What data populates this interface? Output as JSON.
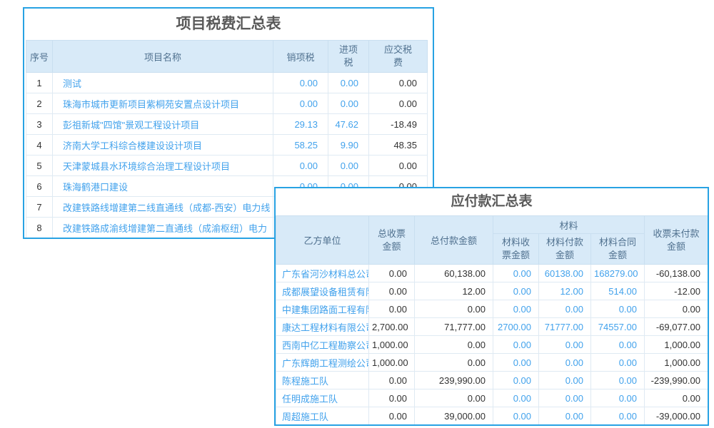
{
  "colors": {
    "card_border": "#28a2e3",
    "header_bg": "#d8eaf8",
    "header_text": "#50718f",
    "link_blue": "#42a2ec",
    "text_dark": "#333333",
    "title_text": "#5a5a5a",
    "cell_border": "#dfeaf3"
  },
  "tax_table": {
    "title": "项目税费汇总表",
    "columns": {
      "no": "序号",
      "project_name": "项目名称",
      "output_tax": "销项税",
      "input_tax": "进项\n税",
      "tax_payable": "应交税\n费"
    },
    "rows": [
      {
        "no": "1",
        "name": "测试",
        "output_tax": "0.00",
        "input_tax": "0.00",
        "tax_payable": "0.00"
      },
      {
        "no": "2",
        "name": "珠海市城市更新项目紫桐苑安置点设计项目",
        "output_tax": "0.00",
        "input_tax": "0.00",
        "tax_payable": "0.00"
      },
      {
        "no": "3",
        "name": "彭祖新城\"四馆\"景观工程设计项目",
        "output_tax": "29.13",
        "input_tax": "47.62",
        "tax_payable": "-18.49"
      },
      {
        "no": "4",
        "name": "济南大学工科综合楼建设设计项目",
        "output_tax": "58.25",
        "input_tax": "9.90",
        "tax_payable": "48.35"
      },
      {
        "no": "5",
        "name": "天津蒙城县水环境综合治理工程设计项目",
        "output_tax": "0.00",
        "input_tax": "0.00",
        "tax_payable": "0.00"
      },
      {
        "no": "6",
        "name": "珠海鹤港口建设",
        "output_tax": "0.00",
        "input_tax": "0.00",
        "tax_payable": "0.00"
      },
      {
        "no": "7",
        "name": "改建铁路线增建第二线直通线（成都-西安）电力线",
        "output_tax": "",
        "input_tax": "",
        "tax_payable": ""
      },
      {
        "no": "8",
        "name": "改建铁路成渝线增建第二直通线（成渝枢纽）电力",
        "output_tax": "",
        "input_tax": "",
        "tax_payable": ""
      }
    ]
  },
  "payable_table": {
    "title": "应付款汇总表",
    "columns": {
      "party": "乙方单位",
      "total_invoice": "总收票\n金额",
      "total_payment": "总付款金额",
      "material_group": "材料",
      "material_invoice": "材料收\n票金额",
      "material_payment": "材料付款\n金额",
      "material_contract": "材料合同\n金额",
      "invoiced_unpaid": "收票未付款\n金额"
    },
    "rows": [
      {
        "company": "广东省河沙材料总公司",
        "total_invoice": "0.00",
        "total_payment": "60,138.00",
        "material_invoice": "0.00",
        "material_payment": "60138.00",
        "material_contract": "168279.00",
        "invoiced_unpaid": "-60,138.00"
      },
      {
        "company": "成都展望设备租赁有限公司",
        "total_invoice": "0.00",
        "total_payment": "12.00",
        "material_invoice": "0.00",
        "material_payment": "12.00",
        "material_contract": "514.00",
        "invoiced_unpaid": "-12.00"
      },
      {
        "company": "中建集团路面工程有限公司",
        "total_invoice": "0.00",
        "total_payment": "0.00",
        "material_invoice": "0.00",
        "material_payment": "0.00",
        "material_contract": "0.00",
        "invoiced_unpaid": "0.00"
      },
      {
        "company": "康达工程材料有限公司",
        "total_invoice": "2,700.00",
        "total_payment": "71,777.00",
        "material_invoice": "2700.00",
        "material_payment": "71777.00",
        "material_contract": "74557.00",
        "invoiced_unpaid": "-69,077.00"
      },
      {
        "company": "西南中亿工程勘察公司",
        "total_invoice": "1,000.00",
        "total_payment": "0.00",
        "material_invoice": "0.00",
        "material_payment": "0.00",
        "material_contract": "0.00",
        "invoiced_unpaid": "1,000.00"
      },
      {
        "company": "广东辉朗工程测绘公司",
        "total_invoice": "1,000.00",
        "total_payment": "0.00",
        "material_invoice": "0.00",
        "material_payment": "0.00",
        "material_contract": "0.00",
        "invoiced_unpaid": "1,000.00"
      },
      {
        "company": "陈程施工队",
        "total_invoice": "0.00",
        "total_payment": "239,990.00",
        "material_invoice": "0.00",
        "material_payment": "0.00",
        "material_contract": "0.00",
        "invoiced_unpaid": "-239,990.00"
      },
      {
        "company": "任明成施工队",
        "total_invoice": "0.00",
        "total_payment": "0.00",
        "material_invoice": "0.00",
        "material_payment": "0.00",
        "material_contract": "0.00",
        "invoiced_unpaid": "0.00"
      },
      {
        "company": "周超施工队",
        "total_invoice": "0.00",
        "total_payment": "39,000.00",
        "material_invoice": "0.00",
        "material_payment": "0.00",
        "material_contract": "0.00",
        "invoiced_unpaid": "-39,000.00"
      }
    ]
  }
}
